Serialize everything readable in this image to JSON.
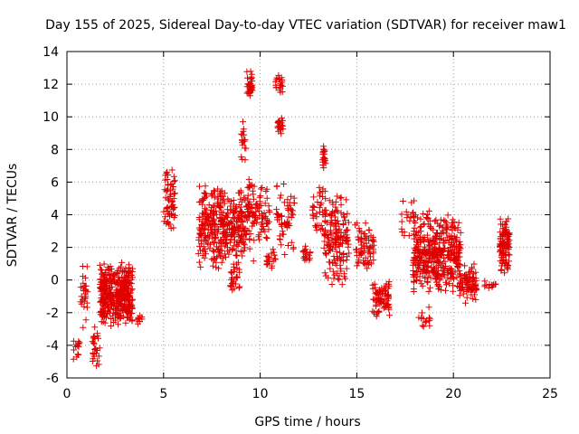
{
  "chart_data": {
    "type": "scatter",
    "title": "Day 155 of 2025, Sidereal Day-to-day VTEC variation (SDTVAR) for receiver maw1",
    "xlabel": "GPS time / hours",
    "ylabel": "SDTVAR / TECUs",
    "xlim": [
      0,
      25
    ],
    "ylim": [
      -6,
      14
    ],
    "xticks": [
      "0",
      "5",
      "10",
      "15",
      "20",
      "25"
    ],
    "yticks": [
      "-6",
      "-4",
      "-2",
      "0",
      "2",
      "4",
      "6",
      "8",
      "10",
      "12",
      "14"
    ],
    "grid": true,
    "marker": "+",
    "color": "#e00000",
    "clusters": [
      {
        "x": [
          0.3,
          0.7
        ],
        "y": [
          -5.0,
          -3.2
        ],
        "n": 14
      },
      {
        "x": [
          0.7,
          1.1
        ],
        "y": [
          -3.0,
          1.2
        ],
        "n": 28
      },
      {
        "x": [
          1.3,
          1.7
        ],
        "y": [
          -5.8,
          -2.5
        ],
        "n": 26
      },
      {
        "x": [
          1.7,
          3.4
        ],
        "y": [
          -3.0,
          1.2
        ],
        "n": 420
      },
      {
        "x": [
          3.5,
          4.0
        ],
        "y": [
          -3.3,
          -1.8
        ],
        "n": 8
      },
      {
        "x": [
          5.0,
          5.6
        ],
        "y": [
          3.0,
          7.2
        ],
        "n": 60
      },
      {
        "x": [
          6.8,
          9.0
        ],
        "y": [
          0.5,
          6.0
        ],
        "n": 330
      },
      {
        "x": [
          8.4,
          9.0
        ],
        "y": [
          -1.0,
          1.5
        ],
        "n": 30
      },
      {
        "x": [
          9.0,
          9.7
        ],
        "y": [
          1.0,
          6.5
        ],
        "n": 90
      },
      {
        "x": [
          9.0,
          9.3
        ],
        "y": [
          7.0,
          10.0
        ],
        "n": 18
      },
      {
        "x": [
          9.3,
          9.6
        ],
        "y": [
          11.0,
          12.9
        ],
        "n": 36
      },
      {
        "x": [
          9.7,
          10.5
        ],
        "y": [
          2.0,
          6.5
        ],
        "n": 55
      },
      {
        "x": [
          10.3,
          10.8
        ],
        "y": [
          0.5,
          2.0
        ],
        "n": 22
      },
      {
        "x": [
          10.8,
          11.2
        ],
        "y": [
          11.3,
          12.6
        ],
        "n": 22
      },
      {
        "x": [
          10.9,
          11.2
        ],
        "y": [
          8.8,
          10.0
        ],
        "n": 20
      },
      {
        "x": [
          10.8,
          11.8
        ],
        "y": [
          1.5,
          6.2
        ],
        "n": 55
      },
      {
        "x": [
          12.2,
          12.6
        ],
        "y": [
          1.0,
          2.2
        ],
        "n": 18
      },
      {
        "x": [
          12.7,
          13.4
        ],
        "y": [
          2.0,
          6.0
        ],
        "n": 38
      },
      {
        "x": [
          13.2,
          13.4
        ],
        "y": [
          6.5,
          8.6
        ],
        "n": 22
      },
      {
        "x": [
          13.3,
          14.6
        ],
        "y": [
          -0.5,
          5.5
        ],
        "n": 160
      },
      {
        "x": [
          14.9,
          15.9
        ],
        "y": [
          0.5,
          3.8
        ],
        "n": 70
      },
      {
        "x": [
          15.8,
          16.7
        ],
        "y": [
          -2.3,
          0.0
        ],
        "n": 75
      },
      {
        "x": [
          17.3,
          18.0
        ],
        "y": [
          2.5,
          5.2
        ],
        "n": 20
      },
      {
        "x": [
          17.9,
          20.4
        ],
        "y": [
          -1.0,
          4.3
        ],
        "n": 420
      },
      {
        "x": [
          18.2,
          18.8
        ],
        "y": [
          -3.3,
          -1.5
        ],
        "n": 15
      },
      {
        "x": [
          20.3,
          21.2
        ],
        "y": [
          -1.5,
          1.0
        ],
        "n": 90
      },
      {
        "x": [
          21.5,
          22.2
        ],
        "y": [
          -0.7,
          0.0
        ],
        "n": 12
      },
      {
        "x": [
          22.4,
          22.9
        ],
        "y": [
          0.2,
          4.0
        ],
        "n": 110
      }
    ]
  }
}
